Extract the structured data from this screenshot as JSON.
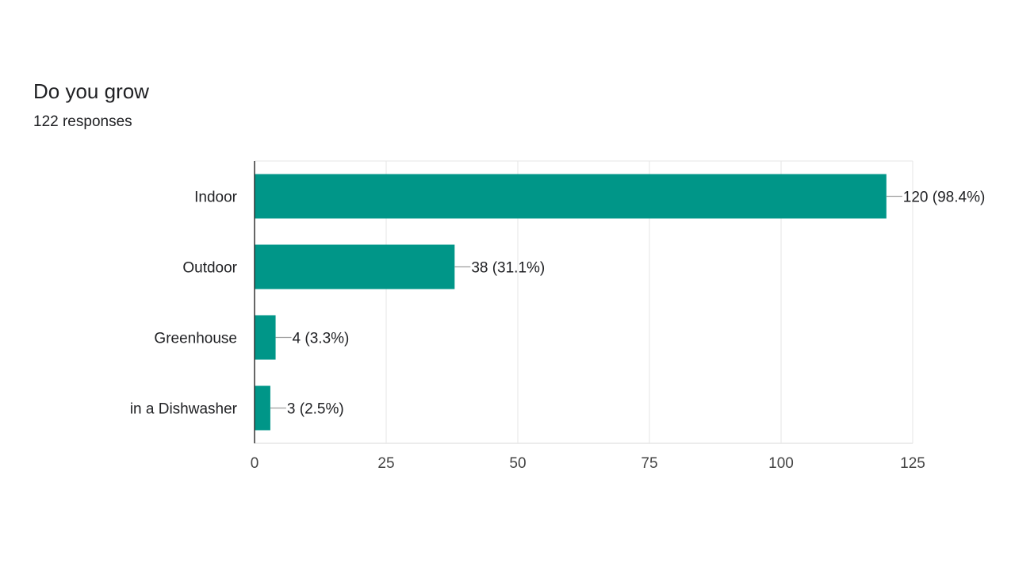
{
  "question": {
    "title": "Do you grow",
    "responses": "122 responses"
  },
  "colors": {
    "bar": "#009688",
    "grid": "#e6e6e6",
    "axis": "#333333",
    "leader": "#9e9e9e",
    "text": "#202124",
    "tick_text": "#444444"
  },
  "chart_data": {
    "type": "bar",
    "orientation": "horizontal",
    "categories": [
      "Indoor",
      "Outdoor",
      "Greenhouse",
      "in a Dishwasher"
    ],
    "values": [
      120,
      38,
      4,
      3
    ],
    "data_labels": [
      "120 (98.4%)",
      "38 (31.1%)",
      "4 (3.3%)",
      "3 (2.5%)"
    ],
    "xlim": [
      0,
      125
    ],
    "xticks": [
      0,
      25,
      50,
      75,
      100,
      125
    ],
    "grid": true,
    "legend": "none"
  }
}
